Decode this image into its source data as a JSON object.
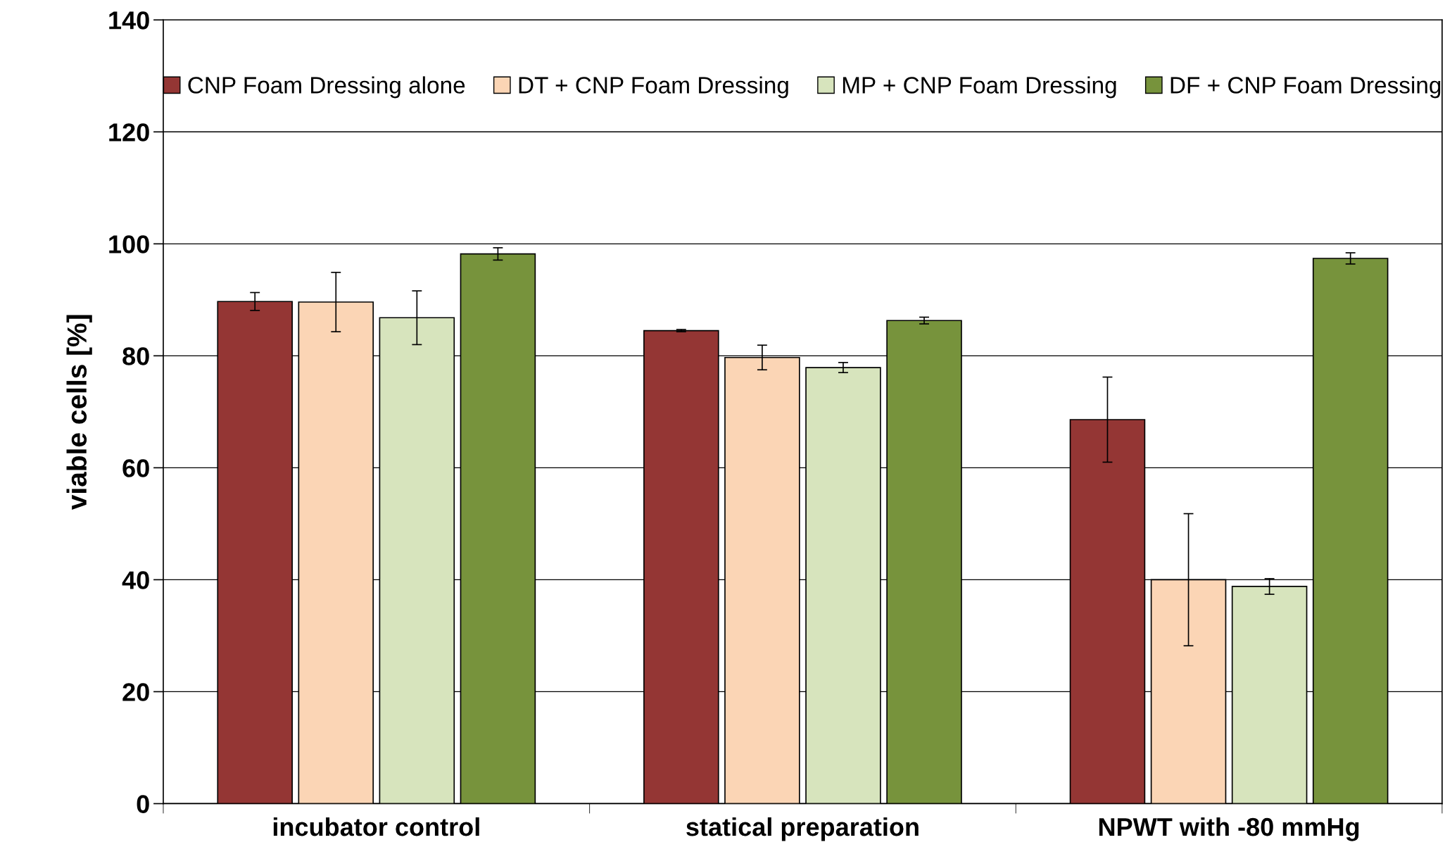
{
  "chart_data": {
    "type": "bar",
    "ylabel": "viable cells [%]",
    "categories": [
      "incubator control",
      "statical preparation",
      "NPWT with -80 mmHg"
    ],
    "series": [
      {
        "name": "CNP Foam Dressing alone",
        "color": "#943634",
        "values": [
          89.7,
          84.5,
          68.6
        ],
        "errors": [
          1.6,
          0.2,
          7.6
        ]
      },
      {
        "name": "DT + CNP Foam Dressing",
        "color": "#fbd5b5",
        "values": [
          89.6,
          79.7,
          40.0
        ],
        "errors": [
          5.3,
          2.2,
          11.8
        ]
      },
      {
        "name": "MP + CNP Foam Dressing",
        "color": "#d7e4bd",
        "values": [
          86.8,
          77.9,
          38.8
        ],
        "errors": [
          4.8,
          0.9,
          1.4
        ]
      },
      {
        "name": "DF + CNP Foam Dressing",
        "color": "#77933c",
        "values": [
          98.2,
          86.3,
          97.4
        ],
        "errors": [
          1.1,
          0.6,
          1.0
        ]
      }
    ],
    "ylim": [
      0,
      140
    ],
    "yticks": [
      0,
      20,
      40,
      60,
      80,
      100,
      120,
      140
    ],
    "grid": "y",
    "legend": "top"
  }
}
